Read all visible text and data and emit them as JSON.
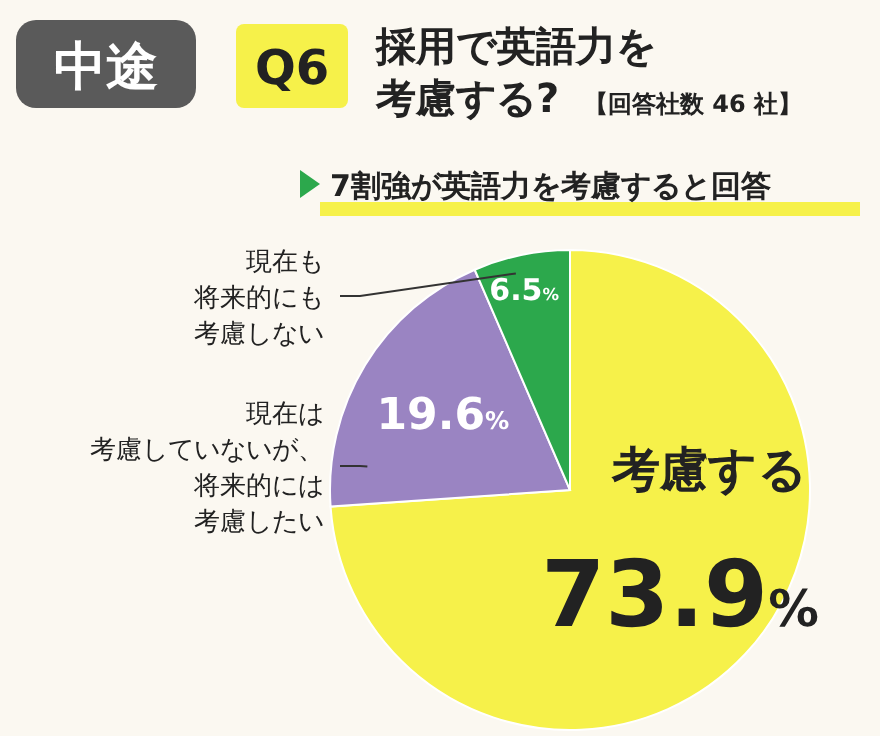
{
  "chart_data": {
    "type": "pie",
    "title": "採用で英語力を考慮する?",
    "subtitle": "7割強が英語力を考慮すると回答",
    "annotations": [
      "中途",
      "Q6",
      "【回答社数 46 社】"
    ],
    "categories": [
      "考慮する",
      "現在は考慮していないが、将来的には考慮したい",
      "現在も将来的にも考慮しない"
    ],
    "values": [
      73.9,
      19.6,
      6.5
    ],
    "value_labels": [
      "73.9%",
      "19.6%",
      "6.5%"
    ],
    "colors": [
      "#f6f14a",
      "#9a84c2",
      "#2ca84c"
    ]
  }
}
